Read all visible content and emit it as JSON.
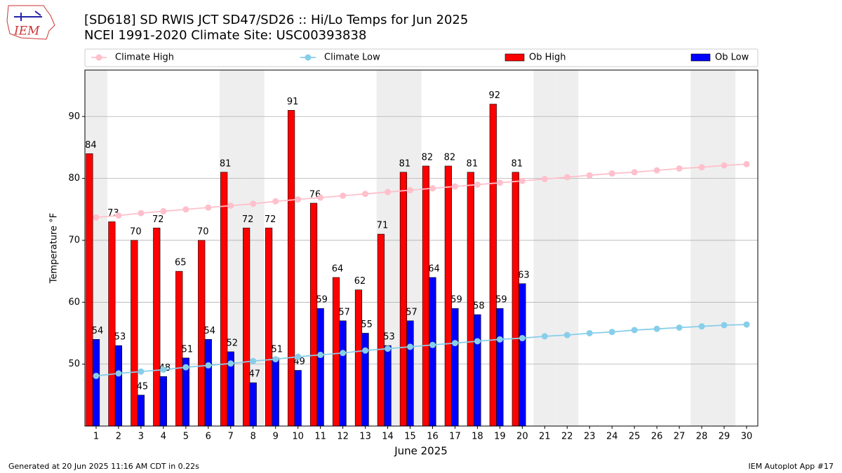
{
  "chart_data": {
    "type": "bar_line",
    "title": "[SD618] SD RWIS JCT SD47/SD26 :: Hi/Lo Temps for Jun 2025",
    "subtitle": "NCEI 1991-2020 Climate Site: USC00393838",
    "xlabel": "June 2025",
    "ylabel": "Temperature °F",
    "logo_text": "IEM",
    "footer_left": "Generated at 20 Jun 2025 11:16 AM CDT in 0.22s",
    "footer_right": "IEM Autoplot App #17",
    "x": [
      1,
      2,
      3,
      4,
      5,
      6,
      7,
      8,
      9,
      10,
      11,
      12,
      13,
      14,
      15,
      16,
      17,
      18,
      19,
      20,
      21,
      22,
      23,
      24,
      25,
      26,
      27,
      28,
      29,
      30
    ],
    "xlim": [
      0.5,
      30.5
    ],
    "xticks": [
      1,
      2,
      3,
      4,
      5,
      6,
      7,
      8,
      9,
      10,
      11,
      12,
      13,
      14,
      15,
      16,
      17,
      18,
      19,
      20,
      21,
      22,
      23,
      24,
      25,
      26,
      27,
      28,
      29,
      30
    ],
    "ylim": [
      40,
      97.5
    ],
    "yticks": [
      50,
      60,
      70,
      80,
      90
    ],
    "grid": true,
    "shaded_x": [
      1,
      7,
      8,
      14,
      15,
      21,
      22,
      28,
      29
    ],
    "shade_color": "#eeeeee",
    "series": [
      {
        "name": "Climate High",
        "kind": "line",
        "color": "pink",
        "values": [
          73.7,
          74.0,
          74.4,
          74.7,
          75.0,
          75.3,
          75.6,
          75.9,
          76.3,
          76.6,
          76.9,
          77.2,
          77.5,
          77.8,
          78.1,
          78.4,
          78.7,
          79.0,
          79.3,
          79.6,
          79.9,
          80.2,
          80.5,
          80.8,
          81.0,
          81.3,
          81.6,
          81.8,
          82.1,
          82.3
        ]
      },
      {
        "name": "Climate Low",
        "kind": "line",
        "color": "skyblue",
        "values": [
          48.1,
          48.5,
          48.8,
          49.1,
          49.5,
          49.8,
          50.1,
          50.5,
          50.8,
          51.2,
          51.5,
          51.8,
          52.2,
          52.5,
          52.8,
          53.1,
          53.4,
          53.7,
          54.0,
          54.2,
          54.5,
          54.7,
          55.0,
          55.2,
          55.5,
          55.7,
          55.9,
          56.1,
          56.3,
          56.4
        ]
      },
      {
        "name": "Ob High",
        "kind": "bar",
        "color": "red",
        "values": [
          84,
          73,
          70,
          72,
          65,
          70,
          81,
          72,
          72,
          91,
          76,
          64,
          62,
          71,
          81,
          82,
          82,
          81,
          92,
          81,
          null,
          null,
          null,
          null,
          null,
          null,
          null,
          null,
          null,
          null
        ]
      },
      {
        "name": "Ob Low",
        "kind": "bar",
        "color": "blue",
        "values": [
          54,
          53,
          45,
          48,
          51,
          54,
          52,
          47,
          51,
          49,
          59,
          57,
          55,
          53,
          57,
          64,
          59,
          58,
          59,
          63,
          null,
          null,
          null,
          null,
          null,
          null,
          null,
          null,
          null,
          null
        ]
      }
    ]
  }
}
